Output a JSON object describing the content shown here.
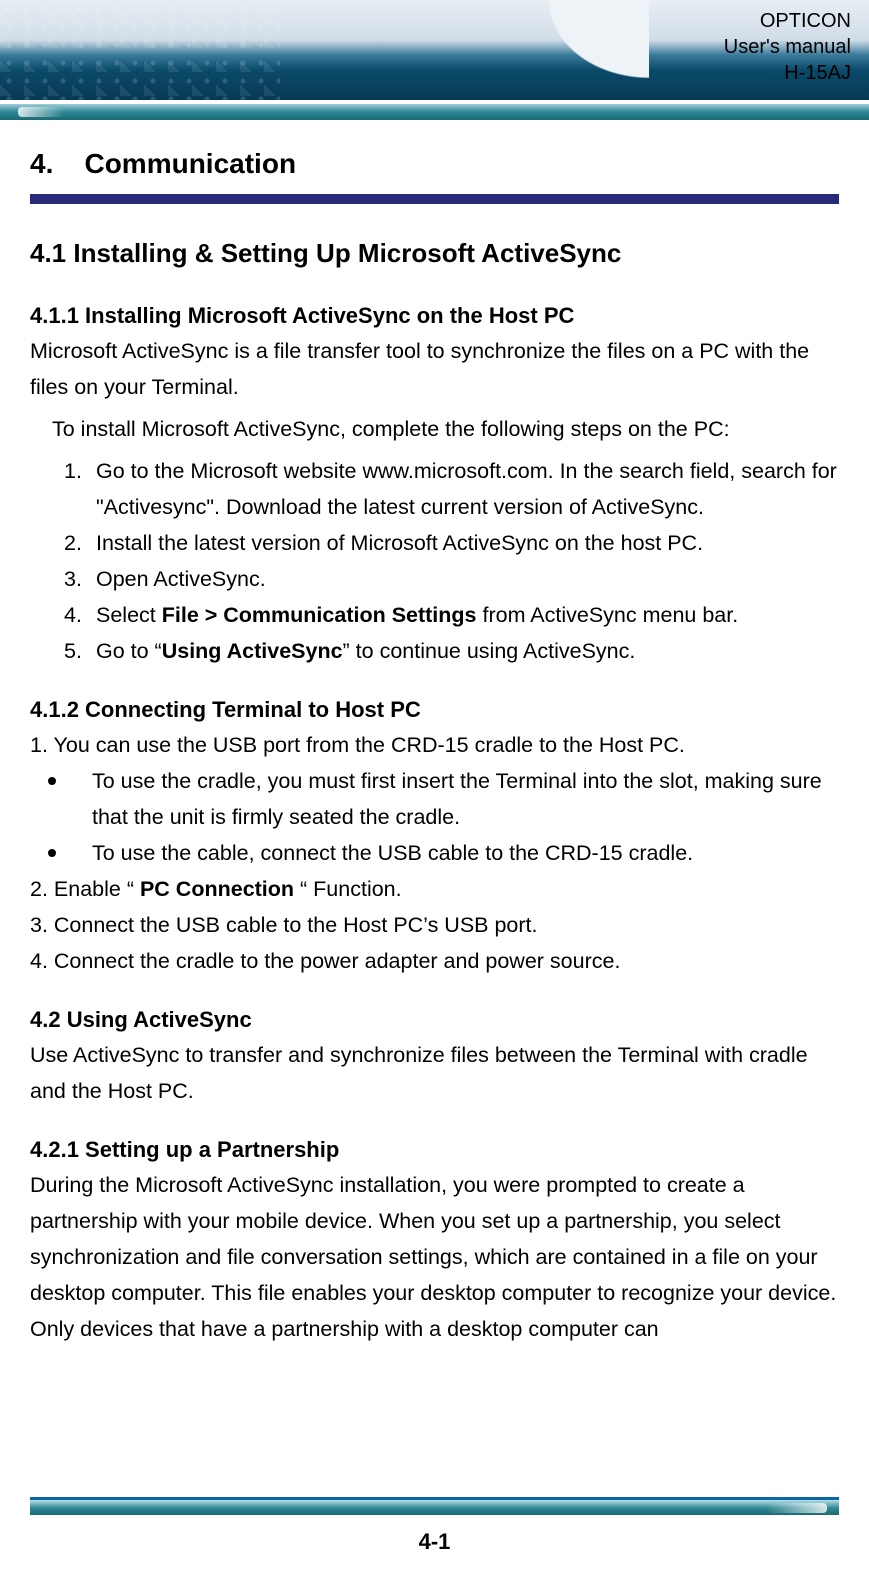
{
  "header": {
    "brand": "OPTICON",
    "subtitle": "User's manual",
    "model": "H-15AJ",
    "colors": {
      "banner_top": "#e8eef3",
      "banner_mid": "#3a7a9a",
      "banner_bottom": "#073a54",
      "teal_bar": "#2e8793",
      "navy_rule": "#2a2a7a",
      "footer_border": "#0b66a8"
    }
  },
  "section": {
    "number": "4.",
    "title": "Communication"
  },
  "s41": {
    "title": "4.1 Installing & Setting Up Microsoft ActiveSync"
  },
  "s411": {
    "title": "4.1.1 Installing Microsoft ActiveSync on the Host PC",
    "p1": "Microsoft ActiveSync is a file transfer tool to synchronize the files on a PC with the files on your Terminal.",
    "p2": "To install Microsoft ActiveSync, complete the following steps on the PC:",
    "steps": {
      "n1": "1.",
      "t1": "Go to the Microsoft website www.microsoft.com. In the search field, search for \"Activesync\". Download the latest current version of ActiveSync.",
      "n2": "2.",
      "t2": "Install the latest version of Microsoft ActiveSync on the host PC.",
      "n3": "3.",
      "t3": "Open ActiveSync.",
      "n4": "4.",
      "t4a": "Select ",
      "t4b": "File > Communication Settings",
      "t4c": " from ActiveSync menu bar.",
      "n5": "5.",
      "t5a": "Go to “",
      "t5b": "Using ActiveSync",
      "t5c": "” to continue using ActiveSync."
    }
  },
  "s412": {
    "title": "4.1.2 Connecting Terminal to Host PC",
    "p1": "1. You can use the USB port from the CRD-15 cradle to the Host PC.",
    "b1": "To use the cradle, you must first insert the Terminal into the slot, making sure that the unit is firmly seated the cradle.",
    "b2": "To use the cable, connect the USB cable to the CRD-15 cradle.",
    "p2a": "2. Enable “ ",
    "p2b": "PC Connection",
    "p2c": " “ Function.",
    "p3": "3. Connect the USB cable to the Host PC’s USB port.",
    "p4": "4. Connect the cradle to the power adapter and power source."
  },
  "s42": {
    "title": "4.2 Using ActiveSync",
    "p1": "Use ActiveSync to transfer and synchronize files between the Terminal with cradle and the Host PC."
  },
  "s421": {
    "title": "4.2.1 Setting up a Partnership",
    "p1": "During the Microsoft ActiveSync installation, you were prompted to create a partnership with your mobile device. When you set up a partnership, you select synchronization and file conversation settings, which are contained in a file on your desktop computer. This file enables your desktop computer to recognize your device. Only devices that have a partnership with a desktop computer can"
  },
  "footer": {
    "page": "4-1"
  }
}
